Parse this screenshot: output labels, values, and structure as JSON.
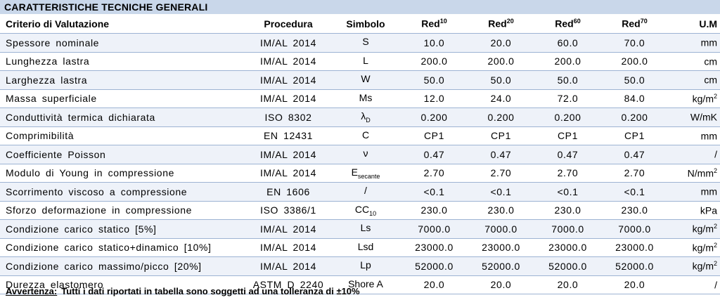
{
  "title": "CARATTERISTICHE TECNICHE GENERALI",
  "headers": [
    {
      "text": "Criterio di Valutazione",
      "sup": ""
    },
    {
      "text": "Procedura",
      "sup": ""
    },
    {
      "text": "Simbolo",
      "sup": ""
    },
    {
      "text": "Red",
      "sup": "10"
    },
    {
      "text": "Red",
      "sup": "20"
    },
    {
      "text": "Red",
      "sup": "60"
    },
    {
      "text": "Red",
      "sup": "70"
    },
    {
      "text": "U.M",
      "sup": ""
    }
  ],
  "rows": [
    {
      "criterio": "Spessore  nominale",
      "procedura": "IM/AL  2014",
      "simbolo": "S",
      "simbolo_sub": "",
      "v": [
        "10.0",
        "20.0",
        "60.0",
        "70.0"
      ],
      "um": "mm",
      "um_sup": ""
    },
    {
      "criterio": "Lunghezza  lastra",
      "procedura": "IM/AL  2014",
      "simbolo": "L",
      "simbolo_sub": "",
      "v": [
        "200.0",
        "200.0",
        "200.0",
        "200.0"
      ],
      "um": "cm",
      "um_sup": ""
    },
    {
      "criterio": "Larghezza  lastra",
      "procedura": "IM/AL  2014",
      "simbolo": "W",
      "simbolo_sub": "",
      "v": [
        "50.0",
        "50.0",
        "50.0",
        "50.0"
      ],
      "um": "cm",
      "um_sup": ""
    },
    {
      "criterio": "Massa  superficiale",
      "procedura": "IM/AL  2014",
      "simbolo": "Ms",
      "simbolo_sub": "",
      "v": [
        "12.0",
        "24.0",
        "72.0",
        "84.0"
      ],
      "um": "kg/m",
      "um_sup": "2"
    },
    {
      "criterio": "Conduttività  termica  dichiarata",
      "procedura": "ISO  8302",
      "simbolo": "λ",
      "simbolo_sub": "D",
      "v": [
        "0.200",
        "0.200",
        "0.200",
        "0.200"
      ],
      "um": "W/mK",
      "um_sup": ""
    },
    {
      "criterio": "Comprimibilità",
      "procedura": "EN  12431",
      "simbolo": "C",
      "simbolo_sub": "",
      "v": [
        "CP1",
        "CP1",
        "CP1",
        "CP1"
      ],
      "um": "mm",
      "um_sup": ""
    },
    {
      "criterio": "Coefficiente  Poisson",
      "procedura": "IM/AL  2014",
      "simbolo": "ν",
      "simbolo_sub": "",
      "v": [
        "0.47",
        "0.47",
        "0.47",
        "0.47"
      ],
      "um": "/",
      "um_sup": ""
    },
    {
      "criterio": "Modulo  di  Young  in  compressione",
      "procedura": "IM/AL  2014",
      "simbolo": "E",
      "simbolo_sub": "secante",
      "v": [
        "2.70",
        "2.70",
        "2.70",
        "2.70"
      ],
      "um": "N/mm",
      "um_sup": "2"
    },
    {
      "criterio": "Scorrimento  viscoso  a  compressione",
      "procedura": "EN  1606",
      "simbolo": "/",
      "simbolo_sub": "",
      "v": [
        "<0.1",
        "<0.1",
        "<0.1",
        "<0.1"
      ],
      "um": "mm",
      "um_sup": ""
    },
    {
      "criterio": "Sforzo  deformazione  in  compressione",
      "procedura": "ISO  3386/1",
      "simbolo": "CC",
      "simbolo_sub": "10",
      "v": [
        "230.0",
        "230.0",
        "230.0",
        "230.0"
      ],
      "um": "kPa",
      "um_sup": ""
    },
    {
      "criterio": "Condizione  carico  statico  [5%]",
      "procedura": "IM/AL  2014",
      "simbolo": "Ls",
      "simbolo_sub": "",
      "v": [
        "7000.0",
        "7000.0",
        "7000.0",
        "7000.0"
      ],
      "um": "kg/m",
      "um_sup": "2"
    },
    {
      "criterio": "Condizione  carico  statico+dinamico  [10%]",
      "procedura": "IM/AL  2014",
      "simbolo": "Lsd",
      "simbolo_sub": "",
      "v": [
        "23000.0",
        "23000.0",
        "23000.0",
        "23000.0"
      ],
      "um": "kg/m",
      "um_sup": "2"
    },
    {
      "criterio": "Condizione  carico  massimo/picco  [20%]",
      "procedura": "IM/AL  2014",
      "simbolo": "Lp",
      "simbolo_sub": "",
      "v": [
        "52000.0",
        "52000.0",
        "52000.0",
        "52000.0"
      ],
      "um": "kg/m",
      "um_sup": "2"
    },
    {
      "criterio": "Durezza  elastomero",
      "procedura": "ASTM  D  2240",
      "simbolo": "Shore  A",
      "simbolo_sub": "",
      "v": [
        "20.0",
        "20.0",
        "20.0",
        "20.0"
      ],
      "um": "/",
      "um_sup": ""
    }
  ],
  "footer": {
    "label": "Avvertenza:",
    "text": "Tutti i dati riportati in tabella sono soggetti ad una tolleranza di ±10%"
  }
}
